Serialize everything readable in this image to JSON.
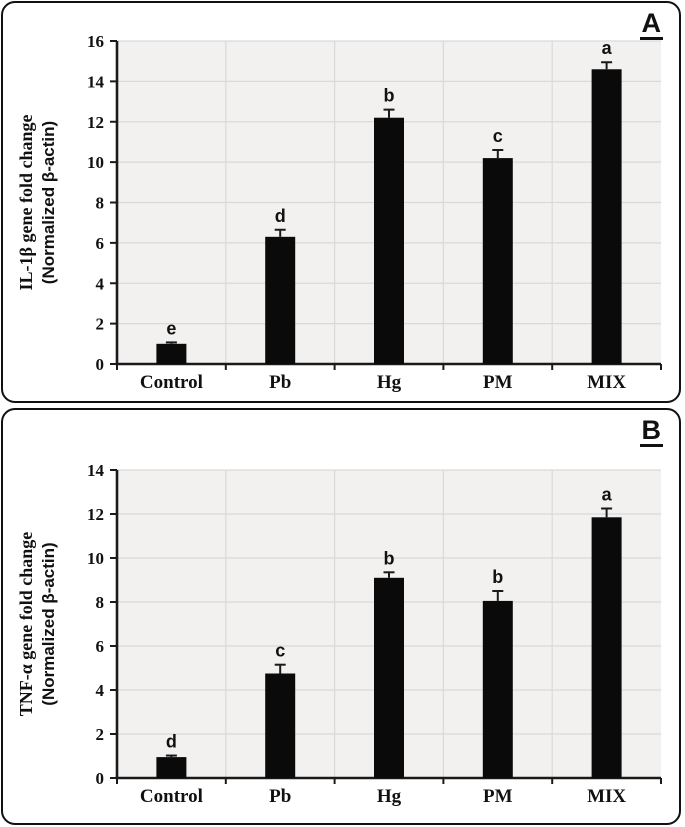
{
  "figure": {
    "panels": [
      {
        "label": "A"
      },
      {
        "label": "B"
      }
    ]
  },
  "chart_data": [
    {
      "type": "bar",
      "panel_label": "A",
      "title": "",
      "categories": [
        "Control",
        "Pb",
        "Hg",
        "PM",
        "MIX"
      ],
      "values": [
        1.0,
        6.3,
        12.2,
        10.2,
        14.6
      ],
      "errors": [
        0.07,
        0.35,
        0.4,
        0.4,
        0.35
      ],
      "sig_letters": [
        "e",
        "d",
        "b",
        "c",
        "a"
      ],
      "ylabel_line1": "IL-1β gene fold change",
      "ylabel_line2": "(Normalized β-actin)",
      "xlabel": "",
      "ylim": [
        0,
        16
      ],
      "ytick_step": 2,
      "grid": true,
      "legend": "none",
      "bar_color": "#0a0a0a",
      "axis_color": "#1a1a1a",
      "plot_bg": "#f2f1ef",
      "grid_color": "#d9d9d9"
    },
    {
      "type": "bar",
      "panel_label": "B",
      "title": "",
      "categories": [
        "Control",
        "Pb",
        "Hg",
        "PM",
        "MIX"
      ],
      "values": [
        0.95,
        4.75,
        9.1,
        8.05,
        11.85
      ],
      "errors": [
        0.07,
        0.4,
        0.25,
        0.45,
        0.4
      ],
      "sig_letters": [
        "d",
        "c",
        "b",
        "b",
        "a"
      ],
      "ylabel_line1": "TNF-α  gene fold change",
      "ylabel_line2": "(Normalized β-actin)",
      "xlabel": "",
      "ylim": [
        0,
        14
      ],
      "ytick_step": 2,
      "grid": true,
      "legend": "none",
      "bar_color": "#0a0a0a",
      "axis_color": "#1a1a1a",
      "plot_bg": "#f2f1ef",
      "grid_color": "#d9d9d9"
    }
  ]
}
